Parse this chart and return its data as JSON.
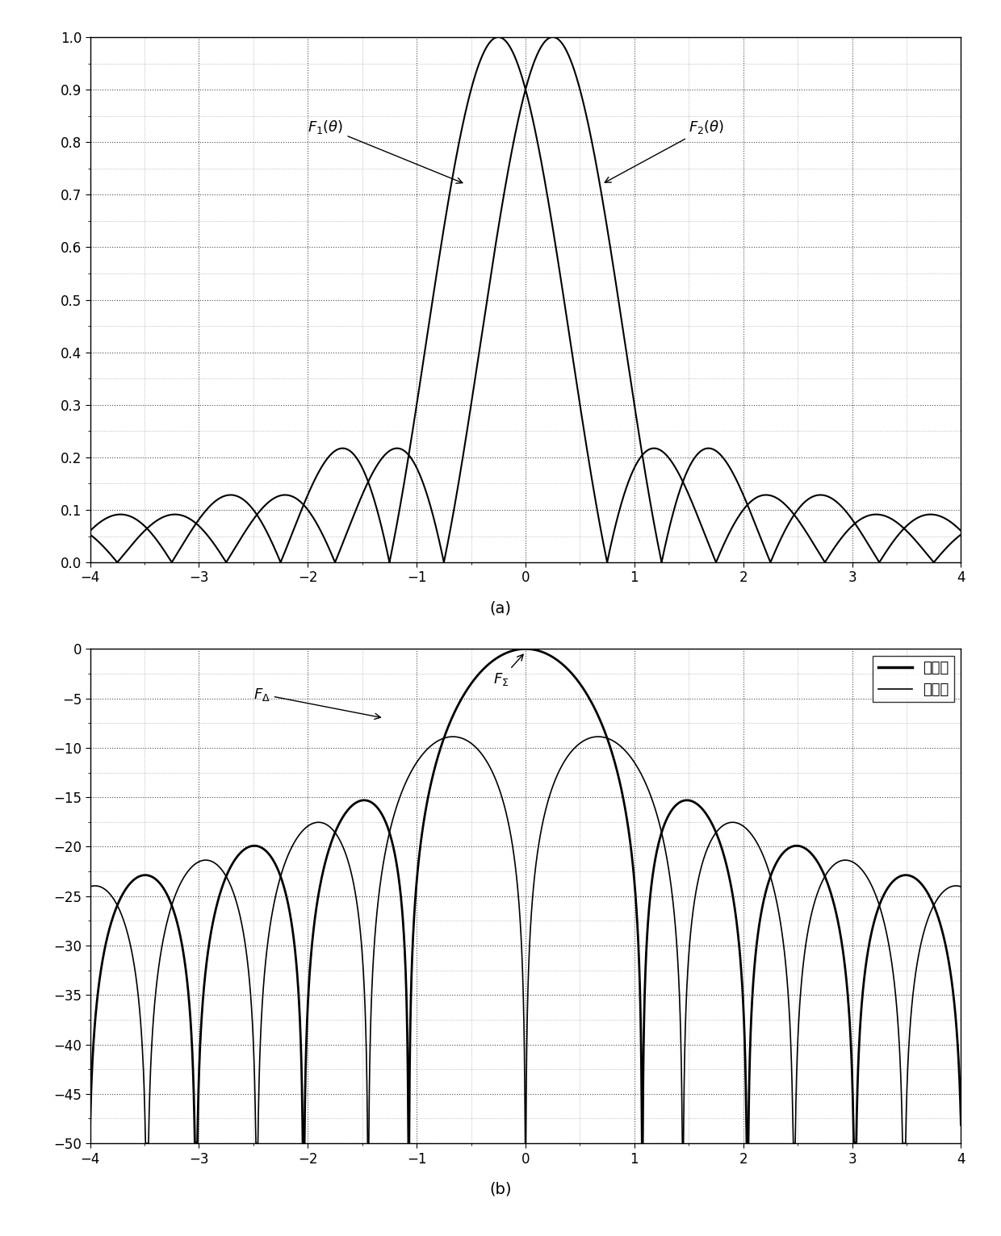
{
  "xlim": [
    -4,
    4
  ],
  "ylim_a": [
    0,
    1
  ],
  "ylim_b": [
    -50,
    0
  ],
  "xticks": [
    -4,
    -3,
    -2,
    -1,
    0,
    1,
    2,
    3,
    4
  ],
  "yticks_a": [
    0,
    0.1,
    0.2,
    0.3,
    0.4,
    0.5,
    0.6,
    0.7,
    0.8,
    0.9,
    1
  ],
  "yticks_b": [
    0,
    -5,
    -10,
    -15,
    -20,
    -25,
    -30,
    -35,
    -40,
    -45,
    -50
  ],
  "label_a": "(a)",
  "label_b": "(b)",
  "legend_sum": "和波束",
  "legend_diff": "差波束",
  "line_color": "black",
  "background_color": "white",
  "squint": 0.25,
  "N": 10000
}
